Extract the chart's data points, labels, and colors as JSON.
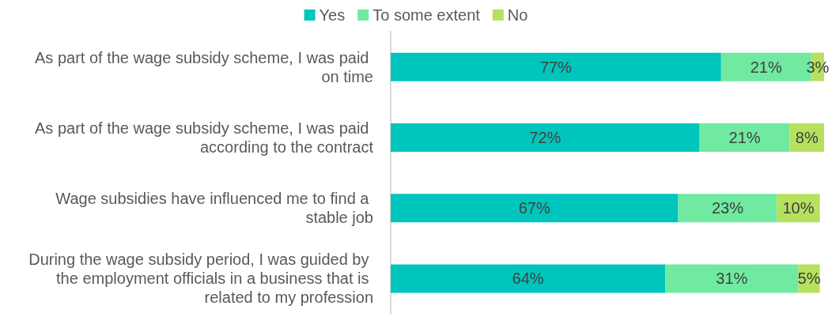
{
  "chart_data": {
    "type": "bar",
    "orientation": "horizontal",
    "stacked": true,
    "categories": [
      "As part of the wage subsidy scheme, I was paid on time",
      "As part of the wage subsidy scheme, I was paid according to the contract",
      "Wage subsidies have influenced me to find a stable job",
      "During the wage subsidy period, I was guided by the employment officials in a business that is related to my profession"
    ],
    "series": [
      {
        "name": "Yes",
        "color": "#00c5bd",
        "values": [
          77,
          72,
          67,
          64
        ],
        "value_labels": [
          "77%",
          "72%",
          "67%",
          "64%"
        ]
      },
      {
        "name": "To some extent",
        "color": "#6feaa0",
        "values": [
          21,
          21,
          23,
          31
        ],
        "value_labels": [
          "21%",
          "21%",
          "23%",
          "31%"
        ]
      },
      {
        "name": "No",
        "color": "#b6e05e",
        "values": [
          3,
          8,
          10,
          5
        ],
        "value_labels": [
          "3%",
          "8%",
          "10%",
          "5%"
        ]
      }
    ],
    "xlim": [
      0,
      101
    ],
    "grid": false,
    "legend": "top",
    "tick_labels": "y"
  }
}
